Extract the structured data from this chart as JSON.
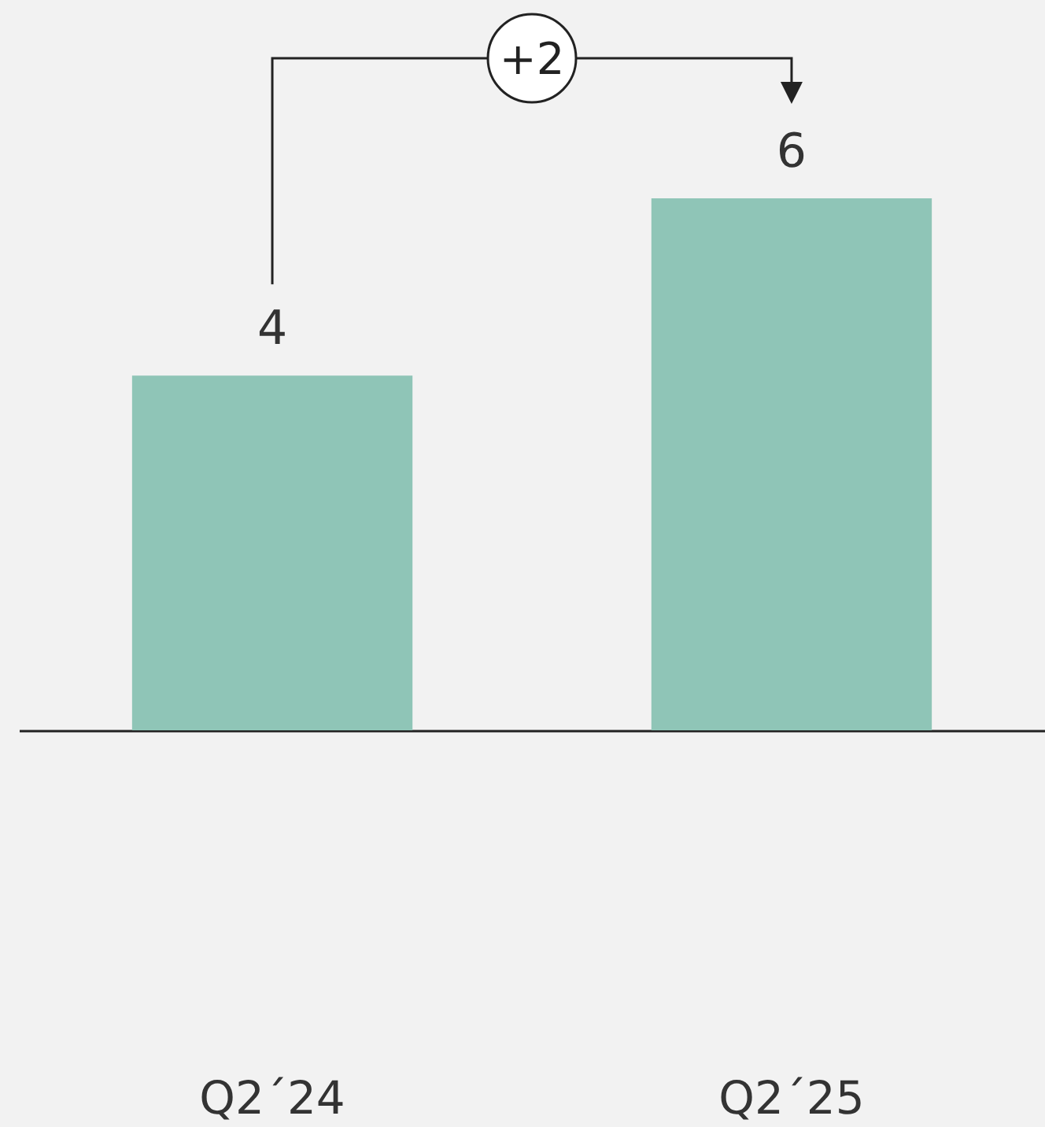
{
  "chart_data": {
    "type": "bar",
    "categories": [
      "Q2´24",
      "Q2´25"
    ],
    "values": [
      4,
      6
    ],
    "color": "#8fc5b7",
    "data_labels": true,
    "tick_labels": "x",
    "annotations": [
      "+2"
    ]
  }
}
